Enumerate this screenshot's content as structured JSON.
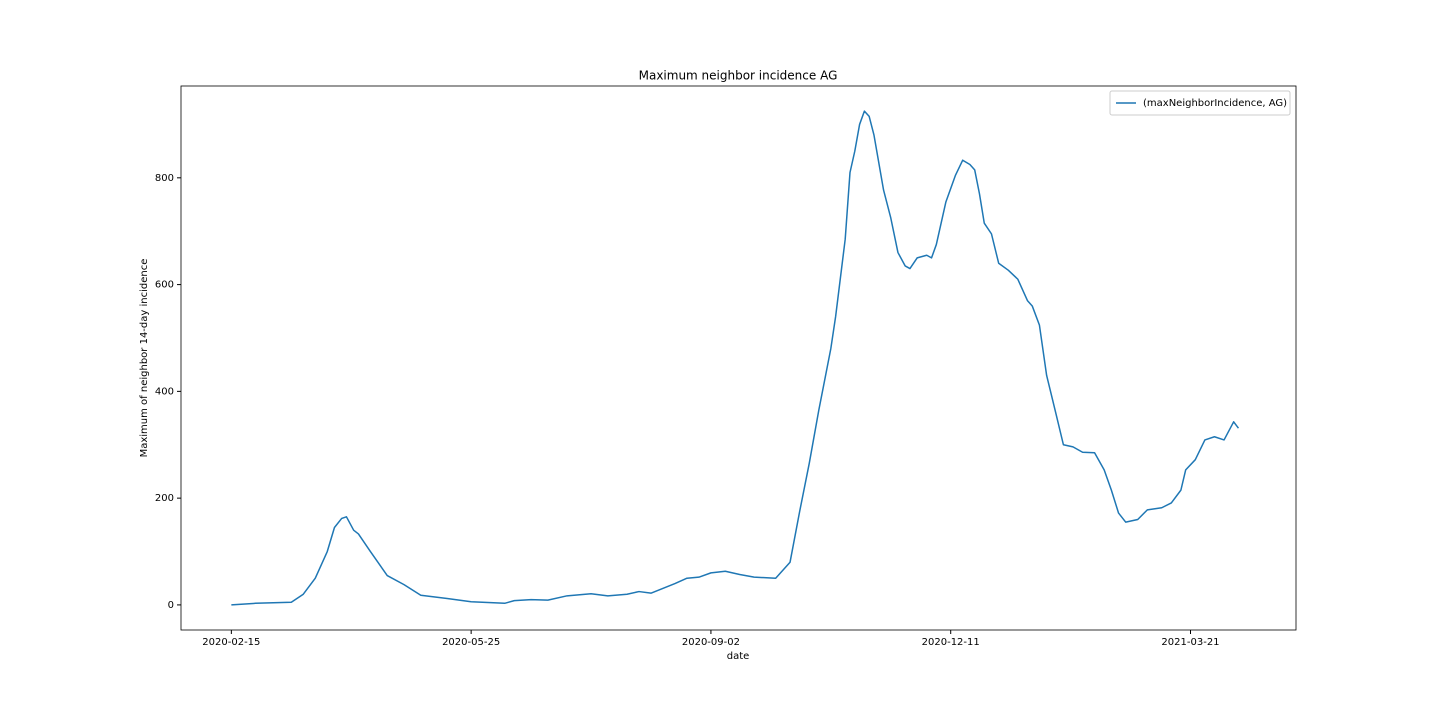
{
  "chart_data": {
    "type": "line",
    "title": "Maximum neighbor incidence AG",
    "x_label": "date",
    "y_label": "Maximum of neighbor 14-day incidence",
    "x": [
      "2020-02-15",
      "2020-02-25",
      "2020-03-11",
      "2020-03-16",
      "2020-03-21",
      "2020-03-26",
      "2020-03-29",
      "2020-04-01",
      "2020-04-03",
      "2020-04-06",
      "2020-04-08",
      "2020-04-13",
      "2020-04-20",
      "2020-04-27",
      "2020-05-04",
      "2020-05-15",
      "2020-05-25",
      "2020-06-08",
      "2020-06-12",
      "2020-06-19",
      "2020-06-26",
      "2020-07-04",
      "2020-07-14",
      "2020-07-21",
      "2020-07-29",
      "2020-08-03",
      "2020-08-08",
      "2020-08-18",
      "2020-08-23",
      "2020-08-28",
      "2020-09-02",
      "2020-09-08",
      "2020-09-14",
      "2020-09-20",
      "2020-09-29",
      "2020-10-05",
      "2020-10-09",
      "2020-10-13",
      "2020-10-17",
      "2020-10-22",
      "2020-10-24",
      "2020-10-28",
      "2020-10-30",
      "2020-11-01",
      "2020-11-03",
      "2020-11-05",
      "2020-11-07",
      "2020-11-09",
      "2020-11-13",
      "2020-11-16",
      "2020-11-19",
      "2020-11-22",
      "2020-11-24",
      "2020-11-27",
      "2020-12-01",
      "2020-12-03",
      "2020-12-05",
      "2020-12-09",
      "2020-12-13",
      "2020-12-16",
      "2020-12-19",
      "2020-12-21",
      "2020-12-23",
      "2020-12-25",
      "2020-12-28",
      "2020-12-31",
      "2021-01-04",
      "2021-01-08",
      "2021-01-12",
      "2021-01-14",
      "2021-01-17",
      "2021-01-20",
      "2021-01-22",
      "2021-01-24",
      "2021-01-27",
      "2021-01-31",
      "2021-02-04",
      "2021-02-09",
      "2021-02-13",
      "2021-02-16",
      "2021-02-19",
      "2021-02-22",
      "2021-02-27",
      "2021-03-03",
      "2021-03-09",
      "2021-03-13",
      "2021-03-17",
      "2021-03-19",
      "2021-03-23",
      "2021-03-27",
      "2021-03-31",
      "2021-04-04",
      "2021-04-08",
      "2021-04-10"
    ],
    "series": [
      {
        "name": "(maxNeighborIncidence, AG)",
        "color": "#1f77b4",
        "values": [
          0,
          3,
          5,
          20,
          50,
          100,
          145,
          162,
          165,
          140,
          133,
          100,
          55,
          38,
          18,
          12,
          6,
          3,
          8,
          10,
          9,
          17,
          21,
          17,
          20,
          25,
          22,
          40,
          50,
          52,
          60,
          63,
          57,
          52,
          50,
          80,
          175,
          265,
          365,
          480,
          540,
          685,
          810,
          850,
          900,
          925,
          915,
          880,
          777,
          725,
          660,
          635,
          630,
          650,
          655,
          650,
          675,
          755,
          805,
          833,
          825,
          815,
          770,
          715,
          695,
          640,
          627,
          610,
          570,
          560,
          524,
          430,
          393,
          356,
          300,
          296,
          286,
          285,
          253,
          215,
          172,
          155,
          160,
          178,
          182,
          191,
          215,
          253,
          272,
          309,
          315,
          309,
          343,
          331
        ]
      }
    ],
    "xlim": [
      "2020-01-25",
      "2021-05-04"
    ],
    "xticks": [
      "2020-02-15",
      "2020-05-25",
      "2020-09-02",
      "2020-12-11",
      "2021-03-21"
    ],
    "ylim": [
      -47,
      972
    ],
    "yticks": [
      0,
      200,
      400,
      600,
      800
    ],
    "legend": "upper right"
  }
}
